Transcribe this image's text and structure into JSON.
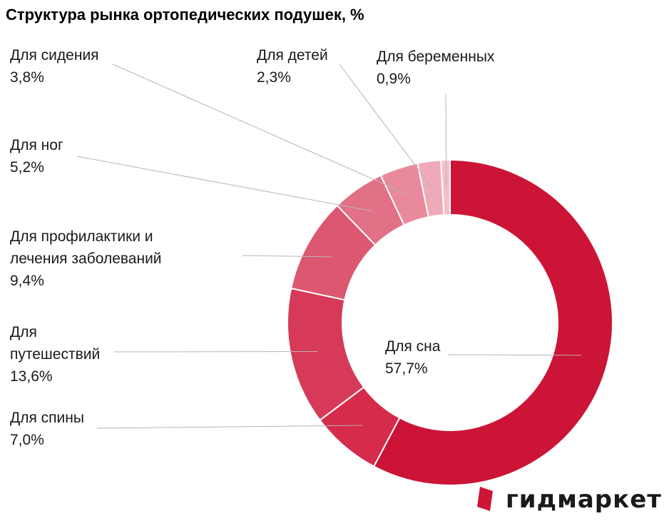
{
  "chart_data": {
    "type": "pie",
    "title": "Структура рынка ортопедических подушек, %",
    "slices": [
      {
        "name": "Для сна",
        "label_lines": [
          "Для сна"
        ],
        "value": 57.7,
        "value_label": "57,7%",
        "color": "#cc1436"
      },
      {
        "name": "Для спины",
        "label_lines": [
          "Для спины"
        ],
        "value": 7.0,
        "value_label": "7,0%",
        "color": "#d62b4a"
      },
      {
        "name": "Для путешествий",
        "label_lines": [
          "Для",
          "путешествий"
        ],
        "value": 13.6,
        "value_label": "13,6%",
        "color": "#d63a58"
      },
      {
        "name": "Для профилактики и лечения заболеваний",
        "label_lines": [
          "Для профилактики и",
          "лечения заболеваний"
        ],
        "value": 9.4,
        "value_label": "9,4%",
        "color": "#dc5770"
      },
      {
        "name": "Для ног",
        "label_lines": [
          "Для ног"
        ],
        "value": 5.2,
        "value_label": "5,2%",
        "color": "#e27086"
      },
      {
        "name": "Для сидения",
        "label_lines": [
          "Для сидения"
        ],
        "value": 3.8,
        "value_label": "3,8%",
        "color": "#e88a9b"
      },
      {
        "name": "Для детей",
        "label_lines": [
          "Для детей"
        ],
        "value": 2.3,
        "value_label": "2,3%",
        "color": "#eeaab7"
      },
      {
        "name": "Для беременных",
        "label_lines": [
          "Для беременных"
        ],
        "value": 0.9,
        "value_label": "0,9%",
        "color": "#f2bfc9"
      }
    ]
  },
  "logo": {
    "text": "гидмаркет",
    "mark_color": "#cc1436"
  }
}
